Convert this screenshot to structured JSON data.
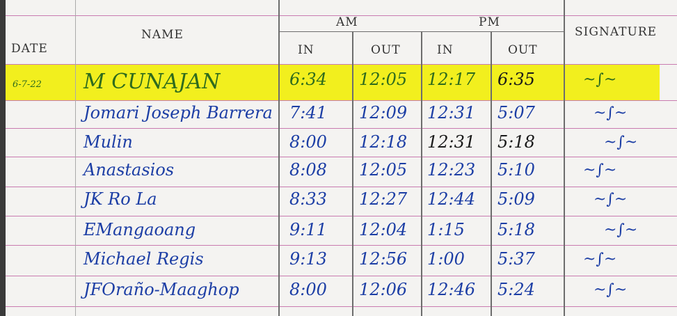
{
  "headers": {
    "date": "DATE",
    "name": "NAME",
    "am": "AM",
    "pm": "PM",
    "in": "IN",
    "out": "OUT",
    "signature": "SIGNATURE"
  },
  "highlight_color": "#f2ef1e",
  "rows": [
    {
      "date": "6-7-22",
      "name": "M CUNAJAN",
      "am_in": "6:34",
      "am_out": "12:05",
      "pm_in": "12:17",
      "pm_out": "6:35"
    },
    {
      "date": "",
      "name": "Jomari Joseph Barrera",
      "am_in": "7:41",
      "am_out": "12:09",
      "pm_in": "12:31",
      "pm_out": "5:07"
    },
    {
      "date": "",
      "name": "Mulin",
      "am_in": "8:00",
      "am_out": "12:18",
      "pm_in": "12:31",
      "pm_out": "5:18"
    },
    {
      "date": "",
      "name": "Anastasios",
      "am_in": "8:08",
      "am_out": "12:05",
      "pm_in": "12:23",
      "pm_out": "5:10"
    },
    {
      "date": "",
      "name": "JK Ro La",
      "am_in": "8:33",
      "am_out": "12:27",
      "pm_in": "12:44",
      "pm_out": "5:09"
    },
    {
      "date": "",
      "name": "EMangaoang",
      "am_in": "9:11",
      "am_out": "12:04",
      "pm_in": "1:15",
      "pm_out": "5:18"
    },
    {
      "date": "",
      "name": "Michael Regis",
      "am_in": "9:13",
      "am_out": "12:56",
      "pm_in": "1:00",
      "pm_out": "5:37"
    },
    {
      "date": "",
      "name": "JFOraño-Maaghop",
      "am_in": "8:00",
      "am_out": "12:06",
      "pm_in": "12:46",
      "pm_out": "5:24"
    }
  ]
}
